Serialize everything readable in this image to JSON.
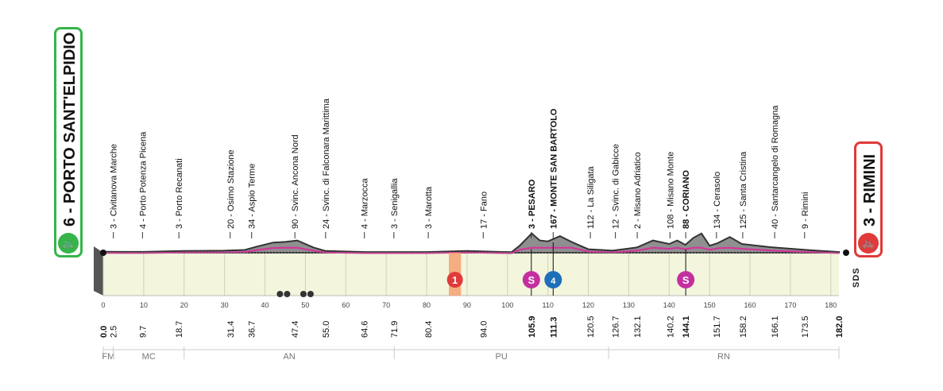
{
  "start": {
    "label": "6 - PORTO SANT'ELPIDIO",
    "color": "#35b54a",
    "icon": "cyclist-icon"
  },
  "finish": {
    "label": "3 - RIMINI",
    "color": "#e03a3a",
    "icon": "cyclist-icon"
  },
  "logo": "SDS",
  "colors": {
    "profile": "#8f8f8f",
    "profile_dark": "#333333",
    "base": "#f3f5dd",
    "route": "#d6319a",
    "sprint": "#c42fa0",
    "km_marker": "#1f6fb8"
  },
  "chart_data": {
    "type": "area",
    "xlim": [
      0,
      182
    ],
    "x_ticks": [
      0,
      10,
      20,
      30,
      40,
      50,
      60,
      70,
      80,
      90,
      100,
      110,
      120,
      130,
      140,
      150,
      160,
      170,
      180
    ],
    "profile": [
      [
        0,
        6
      ],
      [
        5,
        5
      ],
      [
        10,
        5
      ],
      [
        20,
        10
      ],
      [
        30,
        12
      ],
      [
        35,
        16
      ],
      [
        38,
        35
      ],
      [
        42,
        58
      ],
      [
        45,
        62
      ],
      [
        48,
        70
      ],
      [
        52,
        30
      ],
      [
        55,
        10
      ],
      [
        65,
        4
      ],
      [
        80,
        4
      ],
      [
        90,
        10
      ],
      [
        101,
        3
      ],
      [
        103,
        40
      ],
      [
        106,
        110
      ],
      [
        108,
        70
      ],
      [
        110,
        65
      ],
      [
        113,
        95
      ],
      [
        116,
        60
      ],
      [
        120,
        20
      ],
      [
        126,
        12
      ],
      [
        132,
        30
      ],
      [
        136,
        70
      ],
      [
        140,
        50
      ],
      [
        142,
        70
      ],
      [
        144,
        45
      ],
      [
        146,
        85
      ],
      [
        148,
        110
      ],
      [
        150,
        40
      ],
      [
        152,
        55
      ],
      [
        155,
        90
      ],
      [
        158,
        50
      ],
      [
        165,
        32
      ],
      [
        175,
        14
      ],
      [
        182,
        4
      ]
    ],
    "waypoints": [
      {
        "km": 2.5,
        "label": "3 - Civitanova Marche",
        "bold": false
      },
      {
        "km": 9.7,
        "label": "4 - Porto Potenza Picena",
        "bold": false
      },
      {
        "km": 18.7,
        "label": "3 - Porto Recanati",
        "bold": false
      },
      {
        "km": 31.4,
        "label": "20 - Osimo Stazione",
        "bold": false
      },
      {
        "km": 36.7,
        "label": "34 - Aspio Terme",
        "bold": false
      },
      {
        "km": 47.4,
        "label": "90 - Svinc. Ancona Nord",
        "bold": false
      },
      {
        "km": 55.0,
        "label": "24 - Svinc. di Falconara Marittima",
        "bold": false
      },
      {
        "km": 64.6,
        "label": "4 - Marzocca",
        "bold": false
      },
      {
        "km": 71.9,
        "label": "3 - Senigallia",
        "bold": false
      },
      {
        "km": 80.4,
        "label": "3 - Marotta",
        "bold": false
      },
      {
        "km": 94.0,
        "label": "17 - Fano",
        "bold": false
      },
      {
        "km": 105.9,
        "label": "3 - PESARO",
        "bold": true
      },
      {
        "km": 111.3,
        "label": "167 - MONTE SAN BARTOLO",
        "bold": true
      },
      {
        "km": 120.5,
        "label": "112 - La Siligata",
        "bold": false
      },
      {
        "km": 126.7,
        "label": "12 - Svinc. di Gabicce",
        "bold": false
      },
      {
        "km": 132.1,
        "label": "2 - Misano Adriatico",
        "bold": false
      },
      {
        "km": 140.2,
        "label": "108 - Misano Monte",
        "bold": false
      },
      {
        "km": 144.1,
        "label": "88 - CORIANO",
        "bold": true
      },
      {
        "km": 151.7,
        "label": "134 - Cerasolo",
        "bold": false
      },
      {
        "km": 158.2,
        "label": "125 - Santa Cristina",
        "bold": false
      },
      {
        "km": 166.1,
        "label": "40 - Santarcangelo di Romagna",
        "bold": false
      },
      {
        "km": 173.5,
        "label": "9 - Rimini",
        "bold": false
      }
    ],
    "km_labels": [
      {
        "km": 0,
        "text": "0.0",
        "bold": true
      },
      {
        "km": 2.5,
        "text": "2.5",
        "bold": false
      },
      {
        "km": 9.7,
        "text": "9.7",
        "bold": false
      },
      {
        "km": 18.7,
        "text": "18.7",
        "bold": false
      },
      {
        "km": 31.4,
        "text": "31.4",
        "bold": false
      },
      {
        "km": 36.7,
        "text": "36.7",
        "bold": false
      },
      {
        "km": 47.4,
        "text": "47.4",
        "bold": false
      },
      {
        "km": 55.0,
        "text": "55.0",
        "bold": false
      },
      {
        "km": 64.6,
        "text": "64.6",
        "bold": false
      },
      {
        "km": 71.9,
        "text": "71.9",
        "bold": false
      },
      {
        "km": 80.4,
        "text": "80.4",
        "bold": false
      },
      {
        "km": 94.0,
        "text": "94.0",
        "bold": false
      },
      {
        "km": 105.9,
        "text": "105.9",
        "bold": true
      },
      {
        "km": 111.3,
        "text": "111.3",
        "bold": true
      },
      {
        "km": 120.5,
        "text": "120.5",
        "bold": false
      },
      {
        "km": 126.7,
        "text": "126.7",
        "bold": false
      },
      {
        "km": 132.1,
        "text": "132.1",
        "bold": false
      },
      {
        "km": 140.2,
        "text": "140.2",
        "bold": false
      },
      {
        "km": 144.1,
        "text": "144.1",
        "bold": true
      },
      {
        "km": 151.7,
        "text": "151.7",
        "bold": false
      },
      {
        "km": 158.2,
        "text": "158.2",
        "bold": false
      },
      {
        "km": 166.1,
        "text": "166.1",
        "bold": false
      },
      {
        "km": 173.5,
        "text": "173.5",
        "bold": false
      },
      {
        "km": 182.0,
        "text": "182.0",
        "bold": true
      }
    ],
    "sprints": [
      {
        "km": 105.9,
        "label": "S"
      },
      {
        "km": 144.1,
        "label": "S"
      }
    ],
    "kom": {
      "km": 111.3,
      "label": "4"
    },
    "last_km": {
      "km": 85.5,
      "width_km": 3,
      "label": "1"
    },
    "icons": [
      {
        "km": 44.5,
        "name": "cobble-icon"
      },
      {
        "km": 50.3,
        "name": "cobble-icon"
      }
    ],
    "provinces": [
      {
        "from": 0,
        "to": 2.5,
        "label": "FM"
      },
      {
        "from": 2.5,
        "to": 20,
        "label": "MC"
      },
      {
        "from": 20,
        "to": 72,
        "label": "AN"
      },
      {
        "from": 72,
        "to": 125,
        "label": "PU"
      },
      {
        "from": 125,
        "to": 182,
        "label": "RN"
      }
    ]
  }
}
